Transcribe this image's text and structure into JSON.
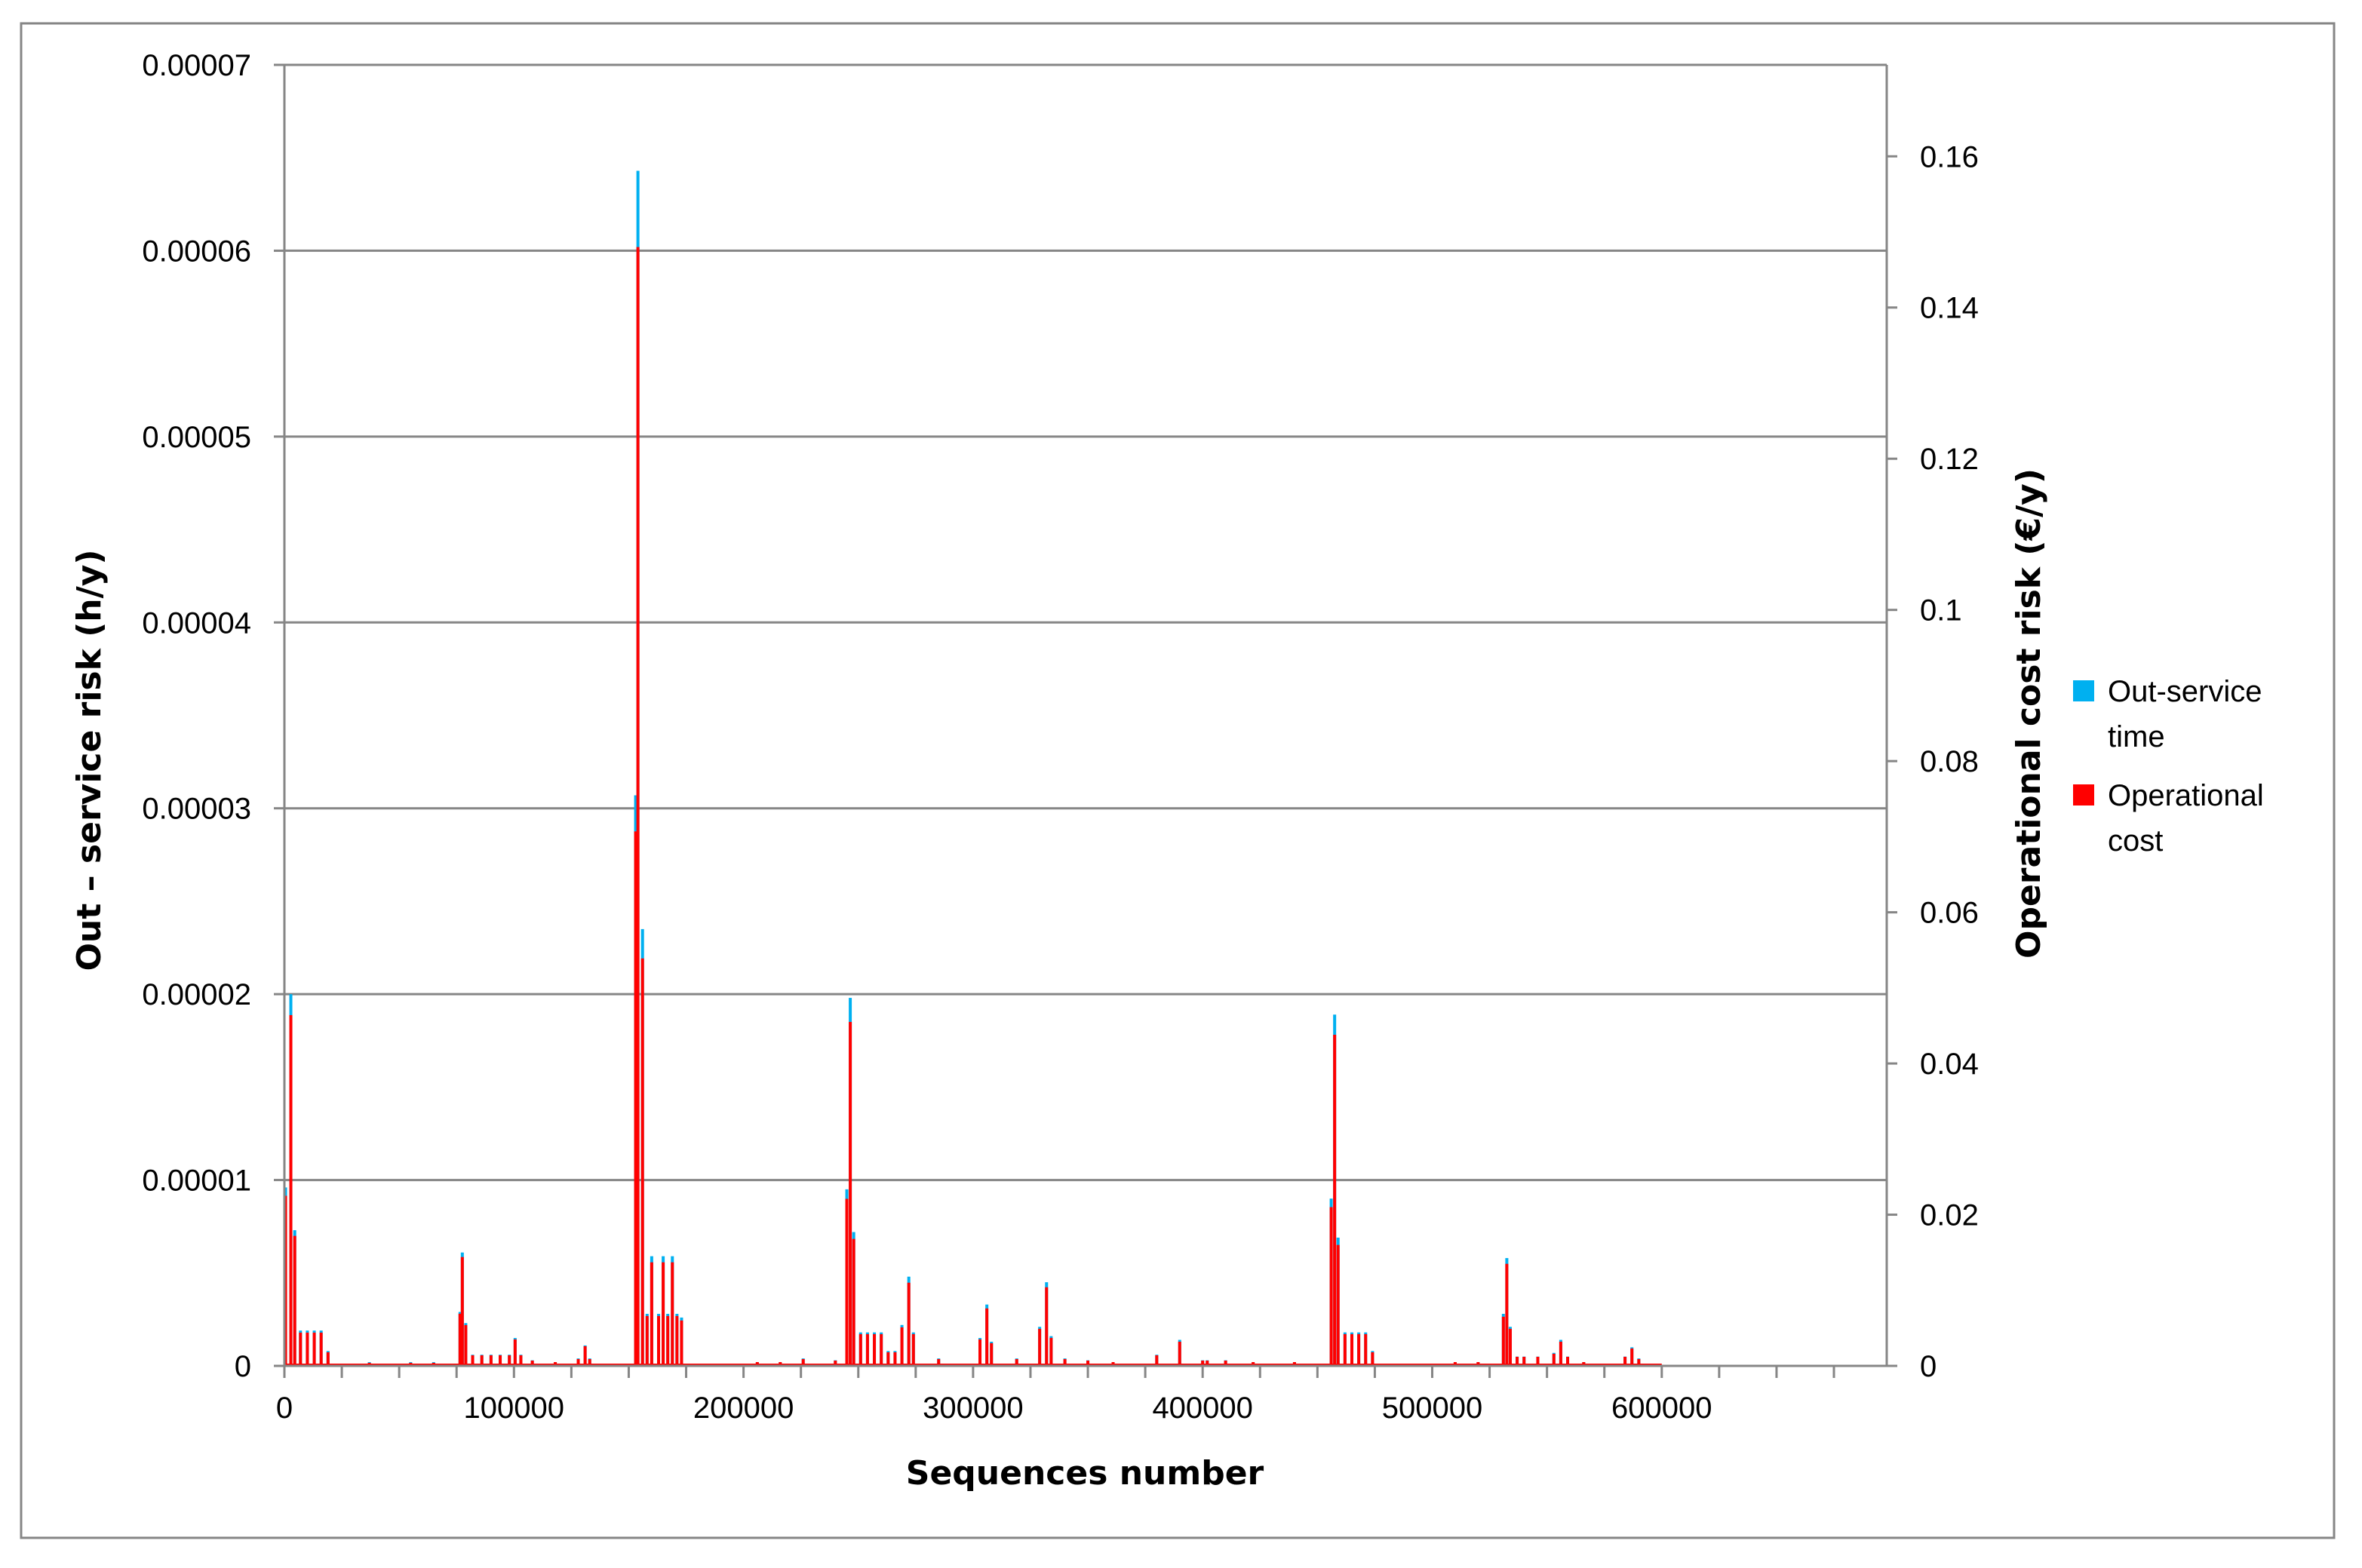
{
  "chart_data": {
    "type": "bar",
    "title": "",
    "xlabel": "Sequences number",
    "ylabel": "Out – service risk (h/y)",
    "y2label": "Operational cost risk (€/y)",
    "xlim": [
      0,
      698000
    ],
    "ylim": [
      0,
      7e-05
    ],
    "y2lim": [
      0,
      0.1721
    ],
    "x_ticks": [
      0,
      100000,
      200000,
      300000,
      400000,
      500000,
      600000
    ],
    "x_tick_labels": [
      "0",
      "100000",
      "200000",
      "300000",
      "400000",
      "500000",
      "600000"
    ],
    "y_ticks": [
      0,
      1e-05,
      2e-05,
      3e-05,
      4e-05,
      5e-05,
      6e-05,
      7e-05
    ],
    "y_tick_labels": [
      "0",
      "0.00001",
      "0.00002",
      "0.00003",
      "0.00004",
      "0.00005",
      "0.00006",
      "0.00007"
    ],
    "y2_ticks": [
      0,
      0.02,
      0.04,
      0.06,
      0.08,
      0.1,
      0.12,
      0.14,
      0.16
    ],
    "y2_tick_labels": [
      "0",
      "0.02",
      "0.04",
      "0.06",
      "0.08",
      "0.1",
      "0.12",
      "0.14",
      "0.16"
    ],
    "grid": true,
    "legend_position": "right",
    "colors": {
      "out_service": "#00B0F0",
      "operational": "#FF0000"
    },
    "x": [
      500,
      2800,
      4500,
      7000,
      10000,
      13000,
      16000,
      19000,
      37000,
      55000,
      65000,
      76500,
      77500,
      79000,
      82000,
      86000,
      90000,
      94000,
      98000,
      100500,
      103000,
      108000,
      118000,
      128000,
      131000,
      133000,
      153000,
      154000,
      156000,
      158000,
      160000,
      163000,
      165000,
      167000,
      169000,
      171000,
      173000,
      206000,
      216000,
      226000,
      240000,
      245000,
      246500,
      248000,
      251000,
      254000,
      257000,
      260000,
      263000,
      266000,
      269000,
      272000,
      274000,
      285000,
      303000,
      306000,
      308000,
      319000,
      329000,
      332000,
      334000,
      340000,
      350000,
      361000,
      380000,
      390000,
      400000,
      402000,
      410000,
      422000,
      440000,
      456000,
      457500,
      459000,
      462000,
      465000,
      468000,
      471000,
      474000,
      510000,
      520000,
      531000,
      532500,
      534000,
      537000,
      540000,
      546000,
      553000,
      556000,
      559000,
      566000,
      584000,
      587000,
      590000
    ],
    "series": [
      {
        "name": "Out-service time",
        "values": [
          9.6e-06,
          2e-05,
          7.3e-06,
          1.9e-06,
          1.9e-06,
          1.9e-06,
          1.9e-06,
          8e-07,
          2e-07,
          2e-07,
          2e-07,
          2.9e-06,
          6.1e-06,
          2.3e-06,
          6e-07,
          6e-07,
          6e-07,
          6e-07,
          6e-07,
          1.5e-06,
          6e-07,
          3e-07,
          2e-07,
          4e-07,
          1.1e-06,
          4e-07,
          3.07e-05,
          6.43e-05,
          2.35e-05,
          2.8e-06,
          5.9e-06,
          2.8e-06,
          5.9e-06,
          2.8e-06,
          5.9e-06,
          2.8e-06,
          2.6e-06,
          2e-07,
          2e-07,
          4e-07,
          3e-07,
          9.5e-06,
          1.98e-05,
          7.2e-06,
          1.8e-06,
          1.8e-06,
          1.8e-06,
          1.8e-06,
          8e-07,
          8e-07,
          2.2e-06,
          4.8e-06,
          1.8e-06,
          4e-07,
          1.5e-06,
          3.3e-06,
          1.3e-06,
          4e-07,
          2.1e-06,
          4.5e-06,
          1.6e-06,
          4e-07,
          3e-07,
          2e-07,
          6e-07,
          1.4e-06,
          3e-07,
          3e-07,
          3e-07,
          2e-07,
          2e-07,
          9e-06,
          1.89e-05,
          6.9e-06,
          1.8e-06,
          1.8e-06,
          1.8e-06,
          1.8e-06,
          8e-07,
          2e-07,
          2e-07,
          2.8e-06,
          5.8e-06,
          2.1e-06,
          5e-07,
          5e-07,
          5e-07,
          7e-07,
          1.4e-06,
          5e-07,
          2e-07,
          5e-07,
          1e-06,
          4e-07
        ]
      },
      {
        "name": "Operational cost",
        "values": [
          0.0225,
          0.0464,
          0.0172,
          0.0044,
          0.0044,
          0.0044,
          0.0044,
          0.0018,
          0.0004,
          0.0004,
          0.0004,
          0.0069,
          0.0144,
          0.0054,
          0.0014,
          0.0014,
          0.0014,
          0.0014,
          0.0014,
          0.0035,
          0.0014,
          0.0007,
          0.0005,
          0.0009,
          0.0026,
          0.0009,
          0.0707,
          0.148,
          0.0539,
          0.0066,
          0.0137,
          0.0066,
          0.0137,
          0.0066,
          0.0137,
          0.0066,
          0.006,
          0.0005,
          0.0005,
          0.0009,
          0.0007,
          0.0221,
          0.0455,
          0.0168,
          0.0042,
          0.0042,
          0.0042,
          0.0042,
          0.0018,
          0.0018,
          0.0051,
          0.011,
          0.0042,
          0.0009,
          0.0035,
          0.0076,
          0.003,
          0.0009,
          0.0049,
          0.0104,
          0.0037,
          0.0009,
          0.0007,
          0.0005,
          0.0014,
          0.0032,
          0.0007,
          0.0007,
          0.0007,
          0.0005,
          0.0005,
          0.021,
          0.0438,
          0.016,
          0.0042,
          0.0042,
          0.0042,
          0.0042,
          0.0018,
          0.0005,
          0.0005,
          0.0065,
          0.0135,
          0.0049,
          0.0012,
          0.0012,
          0.0012,
          0.0016,
          0.0032,
          0.0012,
          0.0005,
          0.0012,
          0.0023,
          0.0009
        ]
      }
    ]
  }
}
